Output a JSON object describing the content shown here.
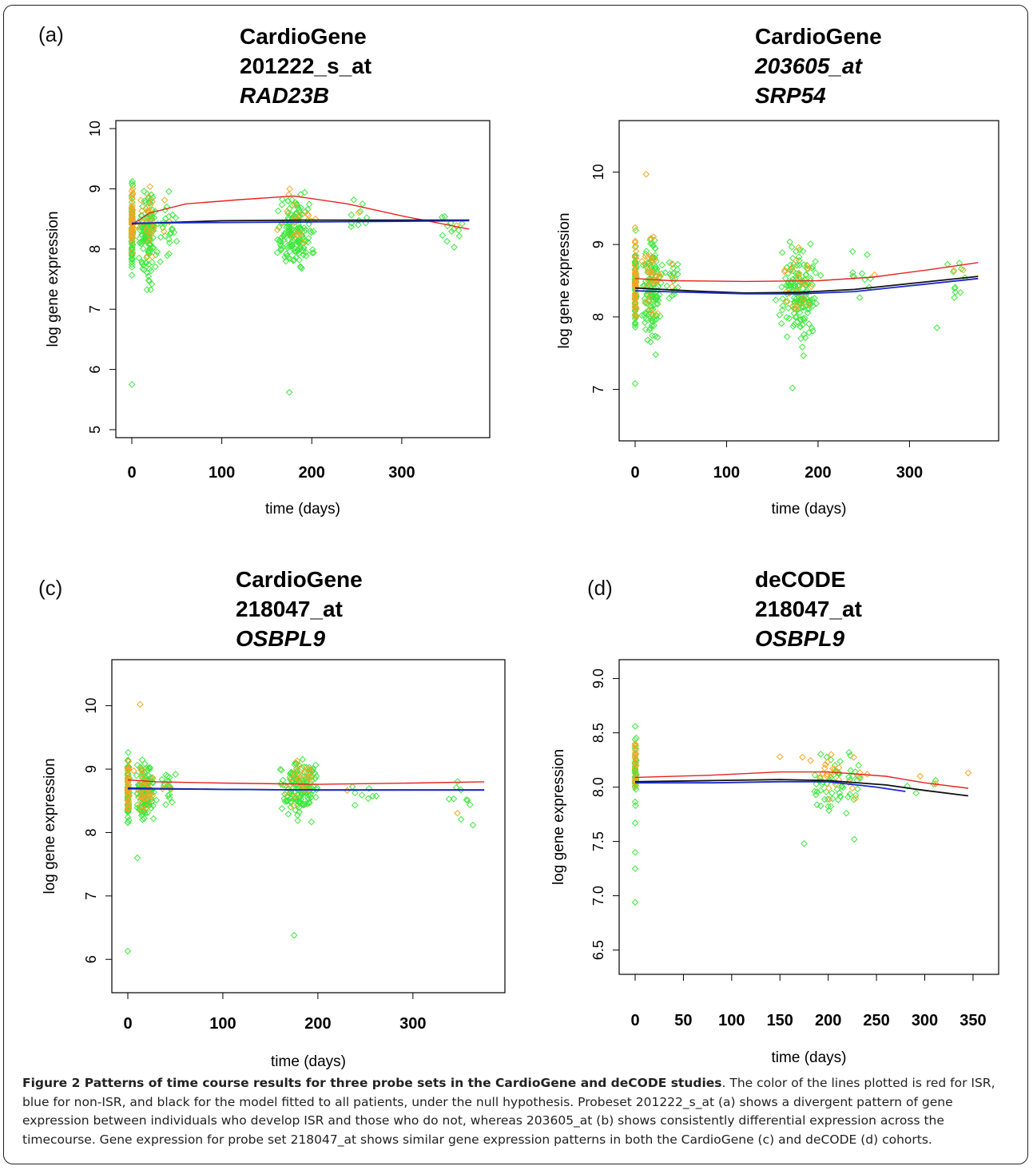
{
  "chart_data": [
    {
      "type": "scatter",
      "panel_label": "(a)",
      "title_lines": [
        "CardioGene",
        "201222_s_at",
        "RAD23B"
      ],
      "xlabel": "time (days)",
      "ylabel": "log gene expression",
      "xlim": [
        0,
        380
      ],
      "ylim": [
        5,
        10
      ],
      "xticks": [
        0,
        100,
        200,
        300
      ],
      "yticks": [
        5,
        6,
        7,
        8,
        9,
        10
      ],
      "clusters": [
        {
          "x": 0,
          "x_spread": 2,
          "y_min": 7.35,
          "y_max": 9.3,
          "n_green": 70,
          "n_orange": 40
        },
        {
          "x": 18,
          "x_spread": 14,
          "y_min": 7.2,
          "y_max": 9.4,
          "n_green": 130,
          "n_orange": 25
        },
        {
          "x": 40,
          "x_spread": 15,
          "y_min": 7.6,
          "y_max": 9.25,
          "n_green": 25,
          "n_orange": 3
        },
        {
          "x": 180,
          "x_spread": 28,
          "y_min": 7.45,
          "y_max": 9.2,
          "n_green": 150,
          "n_orange": 20
        },
        {
          "x": 250,
          "x_spread": 35,
          "y_min": 8.2,
          "y_max": 9.0,
          "n_green": 10,
          "n_orange": 1
        },
        {
          "x": 355,
          "x_spread": 22,
          "y_min": 7.95,
          "y_max": 8.85,
          "n_green": 12,
          "n_orange": 1
        }
      ],
      "outliers": [
        {
          "x": 0,
          "y": 5.75
        },
        {
          "x": 175,
          "y": 5.62
        }
      ],
      "lines": [
        {
          "color": "red",
          "x": [
            0,
            20,
            60,
            120,
            180,
            240,
            300,
            375
          ],
          "y": [
            8.4,
            8.6,
            8.75,
            8.82,
            8.88,
            8.75,
            8.55,
            8.33
          ]
        },
        {
          "color": "black",
          "x": [
            0,
            100,
            200,
            300,
            375
          ],
          "y": [
            8.42,
            8.47,
            8.48,
            8.48,
            8.48
          ]
        },
        {
          "color": "blue",
          "x": [
            0,
            100,
            200,
            300,
            375
          ],
          "y": [
            8.43,
            8.44,
            8.45,
            8.46,
            8.47
          ]
        }
      ]
    },
    {
      "type": "scatter",
      "panel_label": "",
      "title_lines": [
        "CardioGene",
        "203605_at",
        "SRP54"
      ],
      "xlabel": "time (days)",
      "ylabel": "log gene expression",
      "xlim": [
        0,
        380
      ],
      "ylim": [
        6.4,
        10.6
      ],
      "xticks": [
        0,
        100,
        200,
        300
      ],
      "yticks": [
        7,
        8,
        9,
        10
      ],
      "clusters": [
        {
          "x": 0,
          "x_spread": 2,
          "y_min": 7.4,
          "y_max": 9.35,
          "n_green": 70,
          "n_orange": 45
        },
        {
          "x": 18,
          "x_spread": 14,
          "y_min": 7.35,
          "y_max": 9.4,
          "n_green": 120,
          "n_orange": 30
        },
        {
          "x": 42,
          "x_spread": 12,
          "y_min": 8.1,
          "y_max": 9.0,
          "n_green": 20,
          "n_orange": 3
        },
        {
          "x": 180,
          "x_spread": 28,
          "y_min": 7.4,
          "y_max": 9.2,
          "n_green": 150,
          "n_orange": 25
        },
        {
          "x": 250,
          "x_spread": 35,
          "y_min": 8.05,
          "y_max": 9.1,
          "n_green": 10,
          "n_orange": 1
        },
        {
          "x": 355,
          "x_spread": 22,
          "y_min": 8.1,
          "y_max": 9.05,
          "n_green": 10,
          "n_orange": 2
        }
      ],
      "outliers": [
        {
          "x": 12,
          "y": 9.97
        },
        {
          "x": 0,
          "y": 7.08
        },
        {
          "x": 172,
          "y": 7.02
        },
        {
          "x": 330,
          "y": 7.85
        }
      ],
      "lines": [
        {
          "color": "red",
          "x": [
            0,
            40,
            120,
            200,
            260,
            320,
            375
          ],
          "y": [
            8.53,
            8.5,
            8.49,
            8.5,
            8.55,
            8.65,
            8.75
          ]
        },
        {
          "color": "black",
          "x": [
            0,
            60,
            120,
            180,
            240,
            300,
            375
          ],
          "y": [
            8.4,
            8.36,
            8.33,
            8.34,
            8.38,
            8.46,
            8.56
          ]
        },
        {
          "color": "blue",
          "x": [
            0,
            60,
            120,
            180,
            240,
            300,
            375
          ],
          "y": [
            8.36,
            8.34,
            8.32,
            8.32,
            8.35,
            8.43,
            8.53
          ]
        }
      ]
    },
    {
      "type": "scatter",
      "panel_label": "(c)",
      "title_lines": [
        "CardioGene",
        "218047_at",
        "OSBPL9"
      ],
      "xlabel": "time (days)",
      "ylabel": "log gene expression",
      "xlim": [
        0,
        380
      ],
      "ylim": [
        5.6,
        10.6
      ],
      "xticks": [
        0,
        100,
        200,
        300
      ],
      "yticks": [
        6,
        7,
        8,
        9,
        10
      ],
      "clusters": [
        {
          "x": 0,
          "x_spread": 2,
          "y_min": 7.9,
          "y_max": 9.35,
          "n_green": 65,
          "n_orange": 40
        },
        {
          "x": 18,
          "x_spread": 14,
          "y_min": 7.95,
          "y_max": 9.3,
          "n_green": 120,
          "n_orange": 30
        },
        {
          "x": 42,
          "x_spread": 12,
          "y_min": 8.3,
          "y_max": 9.05,
          "n_green": 18,
          "n_orange": 3
        },
        {
          "x": 180,
          "x_spread": 28,
          "y_min": 8.1,
          "y_max": 9.35,
          "n_green": 150,
          "n_orange": 25
        },
        {
          "x": 245,
          "x_spread": 30,
          "y_min": 8.3,
          "y_max": 8.95,
          "n_green": 8,
          "n_orange": 1
        },
        {
          "x": 355,
          "x_spread": 22,
          "y_min": 8.1,
          "y_max": 8.9,
          "n_green": 10,
          "n_orange": 1
        }
      ],
      "outliers": [
        {
          "x": 13,
          "y": 10.02
        },
        {
          "x": 10,
          "y": 7.6
        },
        {
          "x": 0,
          "y": 6.13
        },
        {
          "x": 175,
          "y": 6.38
        }
      ],
      "lines": [
        {
          "color": "red",
          "x": [
            0,
            30,
            100,
            200,
            300,
            375
          ],
          "y": [
            8.83,
            8.8,
            8.78,
            8.76,
            8.78,
            8.8
          ]
        },
        {
          "color": "black",
          "x": [
            0,
            100,
            200,
            300,
            375
          ],
          "y": [
            8.7,
            8.68,
            8.67,
            8.67,
            8.67
          ]
        },
        {
          "color": "blue",
          "x": [
            0,
            100,
            200,
            300,
            375
          ],
          "y": [
            8.69,
            8.68,
            8.67,
            8.67,
            8.67
          ]
        }
      ]
    },
    {
      "type": "scatter",
      "panel_label": "(d)",
      "title_lines": [
        "deCODE",
        "218047_at",
        "OSBPL9"
      ],
      "xlabel": "time (days)",
      "ylabel": "log gene expression",
      "xlim": [
        0,
        360
      ],
      "ylim": [
        6.35,
        9.1
      ],
      "xticks": [
        0,
        50,
        100,
        150,
        200,
        250,
        300,
        350
      ],
      "yticks": [
        6.5,
        7.0,
        7.5,
        8.0,
        8.5,
        9.0
      ],
      "ytick_labels": [
        "6.5",
        "7.0",
        "7.5",
        "8.0",
        "8.5",
        "9.0"
      ],
      "clusters": [
        {
          "x": 0,
          "x_spread": 1.5,
          "y_min": 7.75,
          "y_max": 8.6,
          "n_green": 45,
          "n_orange": 20
        },
        {
          "x": 205,
          "x_spread": 45,
          "y_min": 7.65,
          "y_max": 8.45,
          "n_green": 60,
          "n_orange": 25
        },
        {
          "x": 290,
          "x_spread": 30,
          "y_min": 7.85,
          "y_max": 8.15,
          "n_green": 4,
          "n_orange": 2
        }
      ],
      "outliers": [
        {
          "x": 0,
          "y": 7.4
        },
        {
          "x": 0,
          "y": 7.25
        },
        {
          "x": 0,
          "y": 6.94
        },
        {
          "x": 0,
          "y": 7.67
        },
        {
          "x": 175,
          "y": 7.48
        },
        {
          "x": 227,
          "y": 7.52
        },
        {
          "x": 345,
          "y": 8.13
        },
        {
          "x": 150,
          "y": 8.28
        }
      ],
      "lines": [
        {
          "color": "red",
          "x": [
            0,
            80,
            150,
            200,
            260,
            300,
            345
          ],
          "y": [
            8.09,
            8.11,
            8.14,
            8.14,
            8.1,
            8.04,
            7.99
          ]
        },
        {
          "color": "black",
          "x": [
            0,
            80,
            150,
            200,
            260,
            300,
            345
          ],
          "y": [
            8.05,
            8.06,
            8.07,
            8.06,
            8.02,
            7.97,
            7.92
          ]
        },
        {
          "color": "blue",
          "x": [
            0,
            80,
            150,
            200,
            250,
            280
          ],
          "y": [
            8.04,
            8.04,
            8.05,
            8.05,
            8.0,
            7.96
          ]
        }
      ]
    }
  ],
  "colors": {
    "green_points": "#3ce83c",
    "orange_points": "#f5a623",
    "red_line": "#e8221f",
    "black_line": "#111111",
    "blue_line": "#1a2acc"
  },
  "caption": {
    "bold": "Figure 2 Patterns of time course results for three probe sets in the CardioGene and deCODE studies",
    "text": ". The color of the lines plotted is red for ISR, blue for non-ISR, and black for the model fitted to all patients, under the null hypothesis. Probeset 201222_s_at (a) shows a divergent pattern of gene expression between individuals who develop ISR and those who do not, whereas 203605_at (b) shows consistently differential expression across the timecourse. Gene expression for probe set 218047_at shows similar gene expression patterns in both the CardioGene (c) and deCODE (d) cohorts."
  }
}
